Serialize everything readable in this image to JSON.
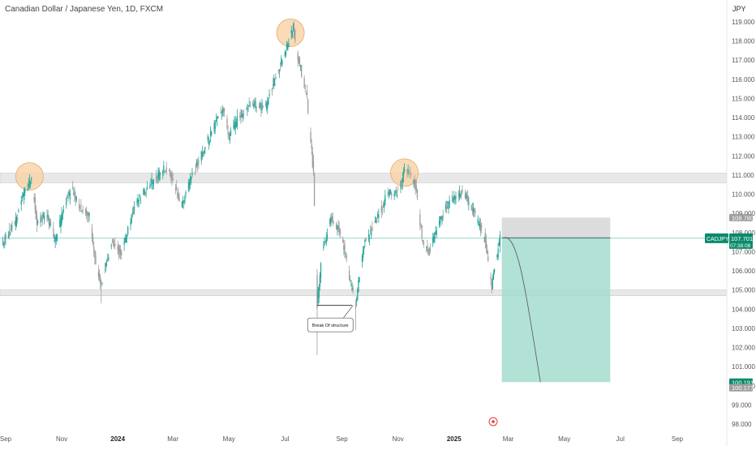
{
  "header": {
    "title": "Canadian Dollar / Japanese Yen, 1D, FXCM",
    "currency": "JPY"
  },
  "colors": {
    "up": "#26a69a",
    "down": "#9e9e9e",
    "zone_fill": "#e8e8e8",
    "highlight": "#f7d2a6",
    "target_fill": "#a5dccf",
    "stop_fill": "#d6d6d6",
    "price_line": "#26a69a"
  },
  "annotation": {
    "label": "Break Of structure"
  },
  "price_labels": {
    "stop": "108.780",
    "entry": "107.728",
    "symbol": "CADJPY",
    "current": "107.701",
    "countdown": "07:38:08",
    "target": "100.191",
    "target2": "100.177"
  },
  "chart_data": {
    "type": "candlestick",
    "title": "Canadian Dollar / Japanese Yen, 1D, FXCM",
    "ylabel": "JPY",
    "ylim": [
      97.7,
      119.8
    ],
    "y_ticks": [
      "119.000",
      "118.000",
      "117.000",
      "116.000",
      "115.000",
      "114.000",
      "113.000",
      "112.000",
      "111.000",
      "110.000",
      "109.000",
      "108.000",
      "107.000",
      "106.000",
      "105.000",
      "104.000",
      "103.000",
      "102.000",
      "101.000",
      "100.000",
      "99.000",
      "98.000"
    ],
    "x_ticks": [
      "Sep",
      "Nov",
      "2024",
      "Mar",
      "May",
      "Jul",
      "Sep",
      "Nov",
      "2025",
      "Mar",
      "May",
      "Jul",
      "Sep"
    ],
    "price_path": [
      [
        "2023-08-29",
        107.5
      ],
      [
        "2023-09-12",
        108.6
      ],
      [
        "2023-09-22",
        110.2
      ],
      [
        "2023-09-29",
        110.8
      ],
      [
        "2023-10-05",
        108.5
      ],
      [
        "2023-10-15",
        109.0
      ],
      [
        "2023-10-25",
        107.6
      ],
      [
        "2023-11-05",
        109.5
      ],
      [
        "2023-11-12",
        110.3
      ],
      [
        "2023-11-20",
        109.3
      ],
      [
        "2023-12-01",
        109.0
      ],
      [
        "2023-12-08",
        106.2
      ],
      [
        "2023-12-14",
        105.3
      ],
      [
        "2023-12-25",
        107.5
      ],
      [
        "2024-01-05",
        106.9
      ],
      [
        "2024-01-20",
        109.5
      ],
      [
        "2024-02-08",
        110.7
      ],
      [
        "2024-02-20",
        111.3
      ],
      [
        "2024-03-01",
        110.9
      ],
      [
        "2024-03-10",
        109.3
      ],
      [
        "2024-03-20",
        110.8
      ],
      [
        "2024-04-05",
        112.5
      ],
      [
        "2024-04-25",
        114.5
      ],
      [
        "2024-05-01",
        113.0
      ],
      [
        "2024-05-10",
        113.9
      ],
      [
        "2024-05-25",
        114.8
      ],
      [
        "2024-06-10",
        114.5
      ],
      [
        "2024-06-25",
        116.7
      ],
      [
        "2024-07-05",
        117.9
      ],
      [
        "2024-07-10",
        118.7
      ],
      [
        "2024-07-15",
        117.2
      ],
      [
        "2024-07-25",
        115.0
      ],
      [
        "2024-08-01",
        111.0
      ],
      [
        "2024-08-05",
        104.2
      ],
      [
        "2024-08-10",
        106.8
      ],
      [
        "2024-08-20",
        108.8
      ],
      [
        "2024-09-01",
        107.8
      ],
      [
        "2024-09-11",
        105.2
      ],
      [
        "2024-09-16",
        104.2
      ],
      [
        "2024-09-25",
        107.5
      ],
      [
        "2024-10-05",
        108.2
      ],
      [
        "2024-10-20",
        110.0
      ],
      [
        "2024-11-01",
        110.1
      ],
      [
        "2024-11-10",
        111.4
      ],
      [
        "2024-11-20",
        110.5
      ],
      [
        "2024-11-28",
        107.4
      ],
      [
        "2024-12-05",
        107.0
      ],
      [
        "2024-12-15",
        108.5
      ],
      [
        "2024-12-28",
        109.7
      ],
      [
        "2025-01-10",
        110.2
      ],
      [
        "2025-01-22",
        109.1
      ],
      [
        "2025-02-03",
        107.8
      ],
      [
        "2025-02-11",
        105.2
      ],
      [
        "2025-02-20",
        107.7
      ]
    ],
    "events": [
      {
        "date": "2023-12-14",
        "low": 104.3
      },
      {
        "date": "2024-08-05",
        "low": 101.6
      },
      {
        "date": "2024-09-16",
        "low": 102.9
      }
    ],
    "zones": [
      {
        "y0": 110.6,
        "y1": 111.1
      },
      {
        "y0": 104.7,
        "y1": 105.0
      }
    ],
    "highlights": [
      {
        "date": "2023-09-27",
        "price": 111.1
      },
      {
        "date": "2024-07-07",
        "price": 118.6
      },
      {
        "date": "2024-11-08",
        "price": 111.3
      }
    ],
    "trade": {
      "entry": 107.728,
      "stop": 108.78,
      "target": 100.191,
      "current": 107.701,
      "x0": "2025-02-22",
      "x1": "2025-06-20",
      "projection_end": "2025-04-05"
    },
    "bos": {
      "date": "2024-08-05",
      "price": 104.2,
      "label_date": "2024-09-06",
      "label_price": 103.2
    },
    "grid": false
  }
}
